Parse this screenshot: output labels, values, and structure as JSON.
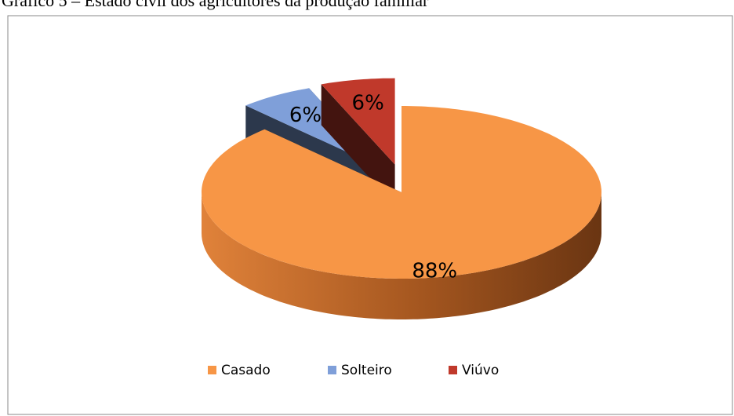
{
  "chart_data": {
    "type": "pie3d",
    "title": "Gráfico 5 – Estado civil dos agricultores da produção familiar",
    "categories": [
      "Casado",
      "Solteiro",
      "Viúvo"
    ],
    "values": [
      88,
      6,
      6
    ],
    "value_labels": [
      "88%",
      "6%",
      "6%"
    ],
    "colors": [
      "#f79646",
      "#7f9fd9",
      "#c0392b"
    ],
    "exploded": [
      false,
      true,
      true
    ],
    "legend": "bottom"
  }
}
